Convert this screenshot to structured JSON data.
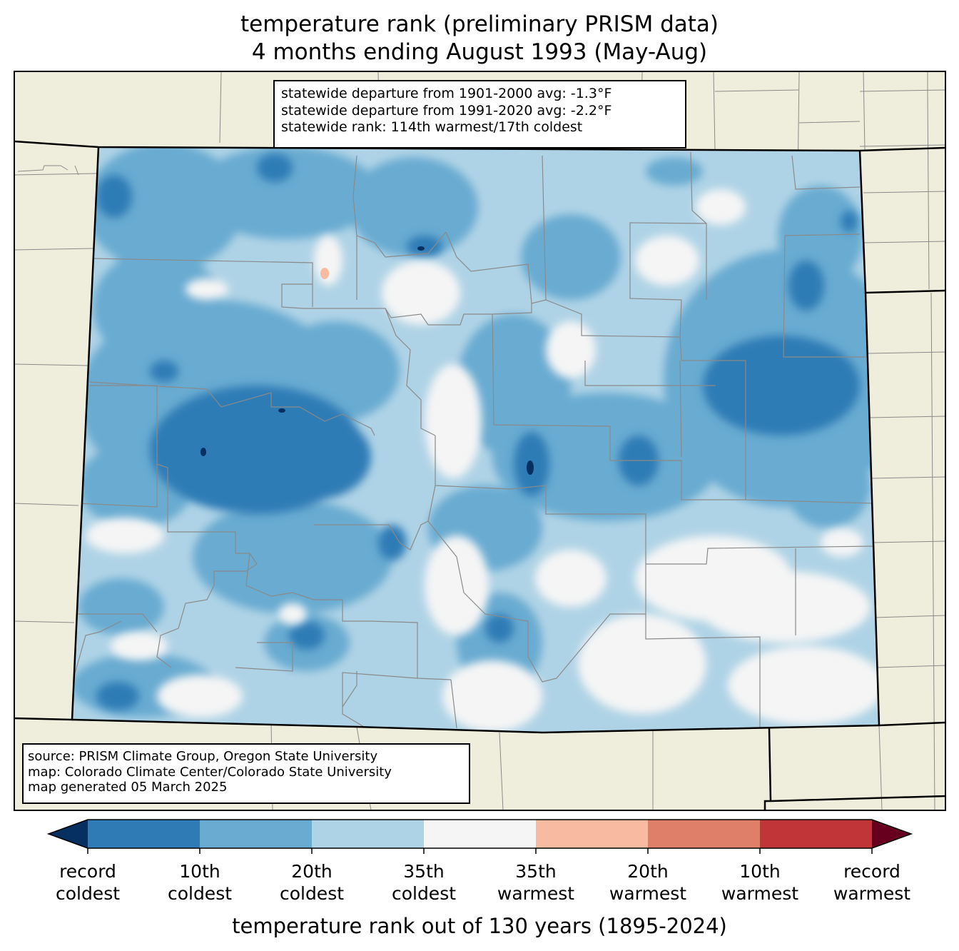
{
  "title": {
    "line1": "temperature rank (preliminary PRISM data)",
    "line2": "4 months ending August 1993 (May-Aug)"
  },
  "stats": {
    "line1": "statewide departure from 1901-2000 avg: -1.3°F",
    "line2": "statewide departure from 1991-2020 avg: -2.2°F",
    "line3": "statewide rank: 114th warmest/17th coldest"
  },
  "credits": {
    "line1": "source: PRISM Climate Group, Oregon State University",
    "line2": "map: Colorado Climate Center/Colorado State University",
    "line3": "map generated 05 March 2025"
  },
  "colorbar": {
    "label": "temperature rank out of 130 years (1895-2024)",
    "extend_low_color": "#053061",
    "extend_high_color": "#67001f",
    "bins": [
      {
        "color": "#2f7bb6"
      },
      {
        "color": "#69abd1"
      },
      {
        "color": "#afd3e6"
      },
      {
        "color": "#f5f5f5"
      },
      {
        "color": "#f8bba1"
      },
      {
        "color": "#e07f69"
      },
      {
        "color": "#c13539"
      }
    ],
    "ticks": [
      {
        "line1": "record",
        "line2": "coldest"
      },
      {
        "line1": "10th",
        "line2": "coldest"
      },
      {
        "line1": "20th",
        "line2": "coldest"
      },
      {
        "line1": "35th",
        "line2": "coldest"
      },
      {
        "line1": "35th",
        "line2": "warmest"
      },
      {
        "line1": "20th",
        "line2": "warmest"
      },
      {
        "line1": "10th",
        "line2": "warmest"
      },
      {
        "line1": "record",
        "line2": "warmest"
      }
    ]
  },
  "map_colors": {
    "land": "#efeedc",
    "county_line": "#8a8a8a",
    "border_line": "#000000"
  }
}
